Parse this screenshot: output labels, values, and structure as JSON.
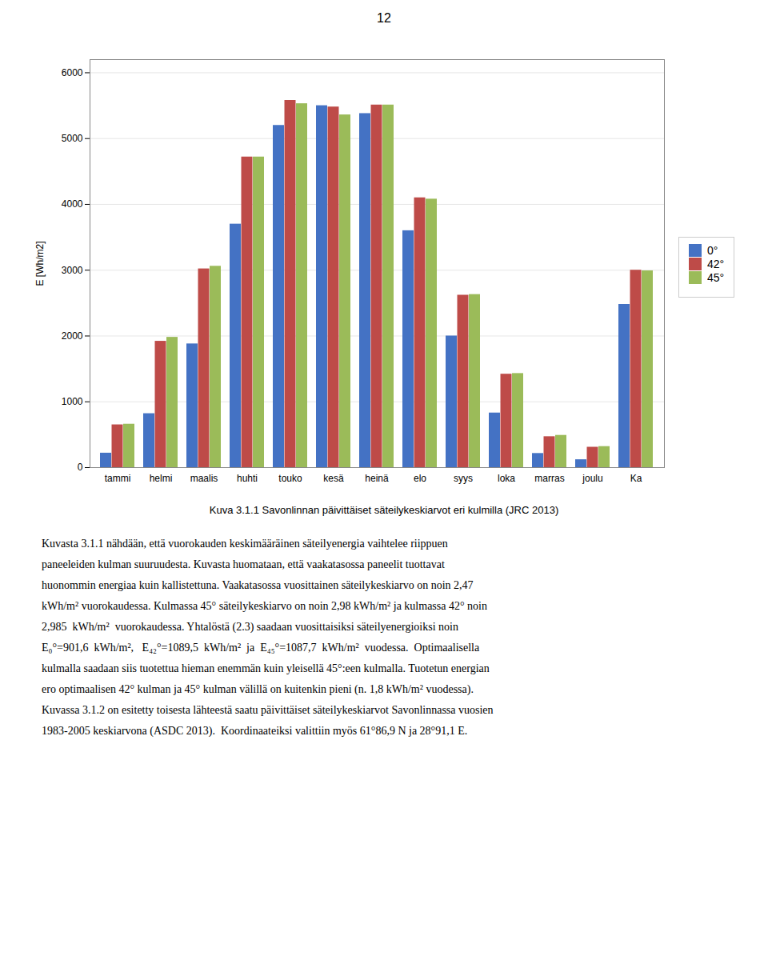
{
  "chart_data": {
    "type": "bar",
    "ylabel": "E [Wh/m2]",
    "categories": [
      "tammi",
      "helmi",
      "maalis",
      "huhti",
      "touko",
      "kesä",
      "heinä",
      "elo",
      "syys",
      "loka",
      "marras",
      "joulu",
      "Ka"
    ],
    "series": [
      {
        "name": "0°",
        "color": "#4472C4",
        "values": [
          220,
          820,
          1880,
          3700,
          5200,
          5500,
          5380,
          3600,
          2000,
          830,
          215,
          120,
          2480
        ]
      },
      {
        "name": "42°",
        "color": "#BE4B48",
        "values": [
          650,
          1920,
          3020,
          4720,
          5580,
          5480,
          5510,
          4100,
          2620,
          1420,
          470,
          310,
          3000
        ]
      },
      {
        "name": "45°",
        "color": "#9BBB59",
        "values": [
          660,
          1980,
          3060,
          4720,
          5530,
          5360,
          5510,
          4080,
          2630,
          1430,
          490,
          320,
          2990
        ]
      }
    ],
    "ylim": [
      0,
      6200
    ],
    "yticks": [
      0,
      1000,
      2000,
      3000,
      4000,
      5000,
      6000
    ],
    "grid": true,
    "legend": "right",
    "annotations": [
      "12",
      "Kuva 3.1.1 Savonlinnan päivittäiset säteilykeskiarvot eri kulmilla (JRC 2013)",
      "Kuvasta 3.1.1 nähdään, että vuorokauden keskimääräinen säteilyenergia vaihtelee riippuen",
      "paneeleiden kulman suuruudesta. Kuvasta huomataan, että vaakatasossa paneelit tuottavat",
      "huonommin energiaa kuin kallistettuna. Vaakatasossa vuosittainen säteilykeskiarvo on noin 2,47",
      "kWh/m² vuorokaudessa. Kulmassa 45° säteilykeskiarvo on noin 2,98 kWh/m² ja kulmassa 42° noin",
      "2,985  kWh/m²  vuorokaudessa. Yhtalöstä (2.3) saadaan vuosittaisiksi säteilyenergioiksi noin",
      "E₀°=901,6  kWh/m²,   E₄₂°=1089,5  kWh/m²  ja  E₄₅°=1087,7  kWh/m²  vuodessa.  Optimaalisella",
      "kulmalla saadaan siis tuotettua hieman enemmän kuin yleisellä 45°:een kulmalla. Tuotetun energian",
      "ero optimaalisen 42° kulman ja 45° kulman välillä on kuitenkin pieni (n. 1,8 kWh/m² vuodessa).",
      "Kuvassa 3.1.2 on esitetty toisesta lähteestä saatu päivittäiset säteilykeskiarvot Savonlinnassa vuosien",
      "1983-2005 keskiarvona (ASDC 2013).  Koordinaateiksi valittiin myös 61°86,9 N ja 28°91,1 E."
    ]
  }
}
